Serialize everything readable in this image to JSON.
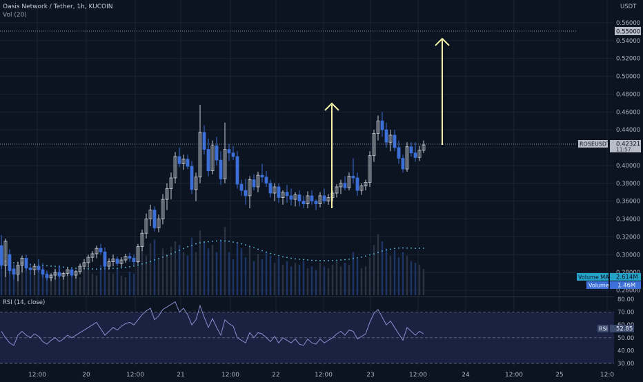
{
  "header": {
    "symbol_title": "Oasis Network / Tether, 1h, KUCOIN",
    "vol_indicator": "Vol (20)",
    "currency": "USDT"
  },
  "price_axis": {
    "labels": [
      "0.56000",
      "0.54000",
      "0.52000",
      "0.50000",
      "0.48000",
      "0.46000",
      "0.44000",
      "0.42000",
      "0.40000",
      "0.38000",
      "0.36000",
      "0.34000",
      "0.32000",
      "0.30000",
      "0.28000",
      "0.26000"
    ],
    "highlight_price": "0.55000",
    "current_price_tag": "ROSEUSDT",
    "current_price": "0.42321",
    "current_price_sub": "11:57",
    "volume_ma_tag": "Volume MA",
    "volume_ma_value": "2.614M",
    "volume_tag": "Volume",
    "volume_value": "1.46M"
  },
  "rsi_panel": {
    "title": "RSI (14, close)",
    "tag": "RSI",
    "value": "52.85",
    "axis_labels": [
      "80.00",
      "70.00",
      "60.00",
      "50.00",
      "40.00",
      "30.00"
    ]
  },
  "time_axis": {
    "labels": [
      "12:00",
      "20",
      "12:00",
      "21",
      "12:00",
      "22",
      "12:00",
      "23",
      "12:00",
      "24",
      "12:00",
      "25",
      "12:0"
    ]
  },
  "colors": {
    "background": "#0c1421",
    "up": "#c8ccd4",
    "down": "#3d6fd8",
    "rsi_line": "#8a8fcf",
    "rsi_band": "#1b2140",
    "volume_ma": "#5ec6e8",
    "arrow": "#f6f3a8",
    "tag_ma": "#26a1c8",
    "tag_vol": "#3d6fd8"
  },
  "chart_data": {
    "type": "candlestick",
    "ylim": [
      0.26,
      0.57
    ],
    "rsi_ylim": [
      25,
      85
    ],
    "candles": [
      {
        "o": 0.31,
        "h": 0.322,
        "l": 0.284,
        "c": 0.288
      },
      {
        "o": 0.288,
        "h": 0.318,
        "l": 0.275,
        "c": 0.315
      },
      {
        "o": 0.3,
        "h": 0.306,
        "l": 0.278,
        "c": 0.282
      },
      {
        "o": 0.284,
        "h": 0.289,
        "l": 0.272,
        "c": 0.278
      },
      {
        "o": 0.278,
        "h": 0.292,
        "l": 0.27,
        "c": 0.288
      },
      {
        "o": 0.288,
        "h": 0.299,
        "l": 0.28,
        "c": 0.296
      },
      {
        "o": 0.296,
        "h": 0.3,
        "l": 0.282,
        "c": 0.285
      },
      {
        "o": 0.285,
        "h": 0.29,
        "l": 0.278,
        "c": 0.283
      },
      {
        "o": 0.283,
        "h": 0.29,
        "l": 0.277,
        "c": 0.287
      },
      {
        "o": 0.287,
        "h": 0.295,
        "l": 0.28,
        "c": 0.283
      },
      {
        "o": 0.283,
        "h": 0.286,
        "l": 0.274,
        "c": 0.278
      },
      {
        "o": 0.278,
        "h": 0.282,
        "l": 0.271,
        "c": 0.274
      },
      {
        "o": 0.274,
        "h": 0.279,
        "l": 0.27,
        "c": 0.277
      },
      {
        "o": 0.277,
        "h": 0.284,
        "l": 0.272,
        "c": 0.28
      },
      {
        "o": 0.28,
        "h": 0.287,
        "l": 0.274,
        "c": 0.276
      },
      {
        "o": 0.276,
        "h": 0.281,
        "l": 0.272,
        "c": 0.279
      },
      {
        "o": 0.279,
        "h": 0.286,
        "l": 0.276,
        "c": 0.283
      },
      {
        "o": 0.283,
        "h": 0.285,
        "l": 0.275,
        "c": 0.277
      },
      {
        "o": 0.277,
        "h": 0.283,
        "l": 0.273,
        "c": 0.281
      },
      {
        "o": 0.281,
        "h": 0.29,
        "l": 0.278,
        "c": 0.287
      },
      {
        "o": 0.287,
        "h": 0.295,
        "l": 0.283,
        "c": 0.291
      },
      {
        "o": 0.291,
        "h": 0.3,
        "l": 0.286,
        "c": 0.297
      },
      {
        "o": 0.297,
        "h": 0.304,
        "l": 0.292,
        "c": 0.301
      },
      {
        "o": 0.301,
        "h": 0.31,
        "l": 0.296,
        "c": 0.307
      },
      {
        "o": 0.307,
        "h": 0.312,
        "l": 0.3,
        "c": 0.303
      },
      {
        "o": 0.303,
        "h": 0.308,
        "l": 0.284,
        "c": 0.287
      },
      {
        "o": 0.287,
        "h": 0.296,
        "l": 0.283,
        "c": 0.292
      },
      {
        "o": 0.292,
        "h": 0.3,
        "l": 0.287,
        "c": 0.295
      },
      {
        "o": 0.295,
        "h": 0.298,
        "l": 0.287,
        "c": 0.29
      },
      {
        "o": 0.29,
        "h": 0.297,
        "l": 0.286,
        "c": 0.294
      },
      {
        "o": 0.294,
        "h": 0.301,
        "l": 0.291,
        "c": 0.298
      },
      {
        "o": 0.298,
        "h": 0.302,
        "l": 0.292,
        "c": 0.296
      },
      {
        "o": 0.296,
        "h": 0.3,
        "l": 0.288,
        "c": 0.292
      },
      {
        "o": 0.292,
        "h": 0.312,
        "l": 0.29,
        "c": 0.309
      },
      {
        "o": 0.309,
        "h": 0.328,
        "l": 0.304,
        "c": 0.324
      },
      {
        "o": 0.324,
        "h": 0.346,
        "l": 0.318,
        "c": 0.34
      },
      {
        "o": 0.34,
        "h": 0.356,
        "l": 0.332,
        "c": 0.35
      },
      {
        "o": 0.35,
        "h": 0.354,
        "l": 0.326,
        "c": 0.33
      },
      {
        "o": 0.33,
        "h": 0.345,
        "l": 0.325,
        "c": 0.34
      },
      {
        "o": 0.34,
        "h": 0.368,
        "l": 0.334,
        "c": 0.362
      },
      {
        "o": 0.362,
        "h": 0.38,
        "l": 0.35,
        "c": 0.374
      },
      {
        "o": 0.374,
        "h": 0.392,
        "l": 0.362,
        "c": 0.386
      },
      {
        "o": 0.386,
        "h": 0.415,
        "l": 0.38,
        "c": 0.41
      },
      {
        "o": 0.41,
        "h": 0.42,
        "l": 0.398,
        "c": 0.402
      },
      {
        "o": 0.402,
        "h": 0.412,
        "l": 0.395,
        "c": 0.407
      },
      {
        "o": 0.407,
        "h": 0.412,
        "l": 0.396,
        "c": 0.399
      },
      {
        "o": 0.399,
        "h": 0.405,
        "l": 0.368,
        "c": 0.373
      },
      {
        "o": 0.373,
        "h": 0.392,
        "l": 0.36,
        "c": 0.387
      },
      {
        "o": 0.387,
        "h": 0.468,
        "l": 0.38,
        "c": 0.437
      },
      {
        "o": 0.437,
        "h": 0.445,
        "l": 0.412,
        "c": 0.418
      },
      {
        "o": 0.418,
        "h": 0.43,
        "l": 0.388,
        "c": 0.394
      },
      {
        "o": 0.394,
        "h": 0.428,
        "l": 0.39,
        "c": 0.422
      },
      {
        "o": 0.422,
        "h": 0.432,
        "l": 0.4,
        "c": 0.406
      },
      {
        "o": 0.406,
        "h": 0.416,
        "l": 0.378,
        "c": 0.385
      },
      {
        "o": 0.385,
        "h": 0.448,
        "l": 0.38,
        "c": 0.418
      },
      {
        "o": 0.418,
        "h": 0.424,
        "l": 0.405,
        "c": 0.414
      },
      {
        "o": 0.414,
        "h": 0.422,
        "l": 0.406,
        "c": 0.41
      },
      {
        "o": 0.41,
        "h": 0.416,
        "l": 0.374,
        "c": 0.379
      },
      {
        "o": 0.379,
        "h": 0.384,
        "l": 0.366,
        "c": 0.372
      },
      {
        "o": 0.372,
        "h": 0.385,
        "l": 0.356,
        "c": 0.366
      },
      {
        "o": 0.366,
        "h": 0.388,
        "l": 0.352,
        "c": 0.384
      },
      {
        "o": 0.384,
        "h": 0.39,
        "l": 0.372,
        "c": 0.376
      },
      {
        "o": 0.376,
        "h": 0.393,
        "l": 0.37,
        "c": 0.389
      },
      {
        "o": 0.389,
        "h": 0.402,
        "l": 0.381,
        "c": 0.387
      },
      {
        "o": 0.387,
        "h": 0.394,
        "l": 0.376,
        "c": 0.38
      },
      {
        "o": 0.38,
        "h": 0.384,
        "l": 0.364,
        "c": 0.369
      },
      {
        "o": 0.369,
        "h": 0.38,
        "l": 0.36,
        "c": 0.376
      },
      {
        "o": 0.376,
        "h": 0.38,
        "l": 0.358,
        "c": 0.364
      },
      {
        "o": 0.364,
        "h": 0.372,
        "l": 0.356,
        "c": 0.37
      },
      {
        "o": 0.37,
        "h": 0.378,
        "l": 0.358,
        "c": 0.366
      },
      {
        "o": 0.366,
        "h": 0.374,
        "l": 0.355,
        "c": 0.362
      },
      {
        "o": 0.362,
        "h": 0.37,
        "l": 0.354,
        "c": 0.367
      },
      {
        "o": 0.367,
        "h": 0.372,
        "l": 0.354,
        "c": 0.36
      },
      {
        "o": 0.36,
        "h": 0.366,
        "l": 0.352,
        "c": 0.357
      },
      {
        "o": 0.357,
        "h": 0.371,
        "l": 0.352,
        "c": 0.366
      },
      {
        "o": 0.366,
        "h": 0.372,
        "l": 0.356,
        "c": 0.36
      },
      {
        "o": 0.36,
        "h": 0.362,
        "l": 0.35,
        "c": 0.357
      },
      {
        "o": 0.357,
        "h": 0.37,
        "l": 0.353,
        "c": 0.366
      },
      {
        "o": 0.366,
        "h": 0.374,
        "l": 0.357,
        "c": 0.36
      },
      {
        "o": 0.36,
        "h": 0.368,
        "l": 0.356,
        "c": 0.364
      },
      {
        "o": 0.364,
        "h": 0.372,
        "l": 0.36,
        "c": 0.369
      },
      {
        "o": 0.369,
        "h": 0.379,
        "l": 0.364,
        "c": 0.376
      },
      {
        "o": 0.376,
        "h": 0.384,
        "l": 0.368,
        "c": 0.38
      },
      {
        "o": 0.38,
        "h": 0.388,
        "l": 0.372,
        "c": 0.375
      },
      {
        "o": 0.375,
        "h": 0.392,
        "l": 0.372,
        "c": 0.388
      },
      {
        "o": 0.388,
        "h": 0.408,
        "l": 0.38,
        "c": 0.386
      },
      {
        "o": 0.386,
        "h": 0.392,
        "l": 0.366,
        "c": 0.372
      },
      {
        "o": 0.372,
        "h": 0.38,
        "l": 0.367,
        "c": 0.377
      },
      {
        "o": 0.377,
        "h": 0.384,
        "l": 0.372,
        "c": 0.381
      },
      {
        "o": 0.381,
        "h": 0.416,
        "l": 0.376,
        "c": 0.411
      },
      {
        "o": 0.411,
        "h": 0.44,
        "l": 0.404,
        "c": 0.436
      },
      {
        "o": 0.436,
        "h": 0.456,
        "l": 0.428,
        "c": 0.45
      },
      {
        "o": 0.45,
        "h": 0.46,
        "l": 0.432,
        "c": 0.44
      },
      {
        "o": 0.44,
        "h": 0.448,
        "l": 0.42,
        "c": 0.426
      },
      {
        "o": 0.426,
        "h": 0.44,
        "l": 0.416,
        "c": 0.434
      },
      {
        "o": 0.434,
        "h": 0.44,
        "l": 0.416,
        "c": 0.42
      },
      {
        "o": 0.42,
        "h": 0.428,
        "l": 0.402,
        "c": 0.408
      },
      {
        "o": 0.408,
        "h": 0.412,
        "l": 0.392,
        "c": 0.396
      },
      {
        "o": 0.396,
        "h": 0.426,
        "l": 0.393,
        "c": 0.421
      },
      {
        "o": 0.421,
        "h": 0.426,
        "l": 0.41,
        "c": 0.414
      },
      {
        "o": 0.414,
        "h": 0.426,
        "l": 0.404,
        "c": 0.409
      },
      {
        "o": 0.409,
        "h": 0.422,
        "l": 0.405,
        "c": 0.417
      },
      {
        "o": 0.417,
        "h": 0.428,
        "l": 0.414,
        "c": 0.423
      }
    ],
    "volume": [
      2.8,
      1.9,
      1.6,
      1.3,
      1.7,
      1.9,
      1.5,
      1.2,
      1.4,
      1.6,
      1.8,
      1.3,
      1.1,
      1.4,
      1.7,
      1.2,
      1.3,
      1.5,
      1.1,
      1.0,
      1.4,
      1.6,
      1.2,
      1.1,
      1.7,
      2.1,
      1.3,
      1.2,
      1.5,
      1.1,
      1.0,
      1.3,
      1.2,
      1.9,
      2.5,
      2.2,
      2.9,
      3.1,
      2.0,
      2.6,
      2.3,
      2.7,
      3.0,
      2.8,
      2.4,
      2.2,
      3.2,
      2.4,
      3.6,
      3.0,
      2.6,
      2.8,
      2.4,
      3.1,
      3.8,
      2.4,
      2.0,
      2.9,
      2.6,
      2.1,
      2.7,
      1.9,
      2.3,
      2.0,
      2.4,
      2.2,
      1.8,
      2.1,
      1.7,
      1.9,
      1.6,
      1.8,
      1.7,
      1.9,
      1.5,
      1.6,
      1.4,
      1.8,
      1.6,
      1.5,
      1.7,
      1.9,
      1.6,
      1.8,
      1.7,
      2.4,
      2.0,
      1.5,
      1.6,
      2.1,
      2.8,
      3.4,
      3.0,
      2.6,
      2.2,
      2.5,
      2.1,
      2.4,
      2.2,
      1.9,
      1.8,
      1.7,
      1.46
    ],
    "volume_ma": [
      1.9,
      1.9,
      1.85,
      1.8,
      1.8,
      1.78,
      1.75,
      1.72,
      1.7,
      1.68,
      1.66,
      1.64,
      1.62,
      1.6,
      1.58,
      1.56,
      1.54,
      1.52,
      1.5,
      1.5,
      1.48,
      1.47,
      1.46,
      1.45,
      1.46,
      1.47,
      1.48,
      1.49,
      1.5,
      1.52,
      1.55,
      1.58,
      1.62,
      1.68,
      1.74,
      1.8,
      1.88,
      1.96,
      2.04,
      2.12,
      2.2,
      2.3,
      2.4,
      2.5,
      2.6,
      2.7,
      2.78,
      2.86,
      2.92,
      2.96,
      2.98,
      3.0,
      3.02,
      3.03,
      3.02,
      3.0,
      2.96,
      2.92,
      2.86,
      2.8,
      2.72,
      2.64,
      2.56,
      2.48,
      2.4,
      2.32,
      2.26,
      2.2,
      2.14,
      2.1,
      2.06,
      2.02,
      2.0,
      1.98,
      1.96,
      1.94,
      1.93,
      1.92,
      1.92,
      1.92,
      1.93,
      1.94,
      1.96,
      1.98,
      2.0,
      2.04,
      2.08,
      2.12,
      2.18,
      2.24,
      2.3,
      2.38,
      2.46,
      2.52,
      2.56,
      2.6,
      2.62,
      2.63,
      2.62,
      2.62,
      2.61,
      2.614,
      2.614
    ],
    "rsi": [
      55,
      50,
      46,
      44,
      52,
      55,
      52,
      50,
      53,
      51,
      47,
      45,
      48,
      50,
      47,
      49,
      52,
      50,
      52,
      54,
      56,
      58,
      60,
      62,
      57,
      52,
      55,
      58,
      56,
      59,
      61,
      62,
      60,
      64,
      68,
      71,
      73,
      64,
      67,
      72,
      74,
      76,
      78,
      70,
      73,
      68,
      60,
      64,
      75,
      66,
      58,
      65,
      58,
      52,
      64,
      61,
      59,
      50,
      48,
      46,
      54,
      50,
      54,
      53,
      50,
      47,
      51,
      46,
      50,
      48,
      46,
      49,
      45,
      44,
      49,
      46,
      45,
      49,
      46,
      48,
      50,
      53,
      55,
      52,
      56,
      55,
      49,
      51,
      53,
      62,
      69,
      72,
      66,
      60,
      63,
      58,
      53,
      48,
      58,
      55,
      52,
      55,
      53
    ]
  }
}
